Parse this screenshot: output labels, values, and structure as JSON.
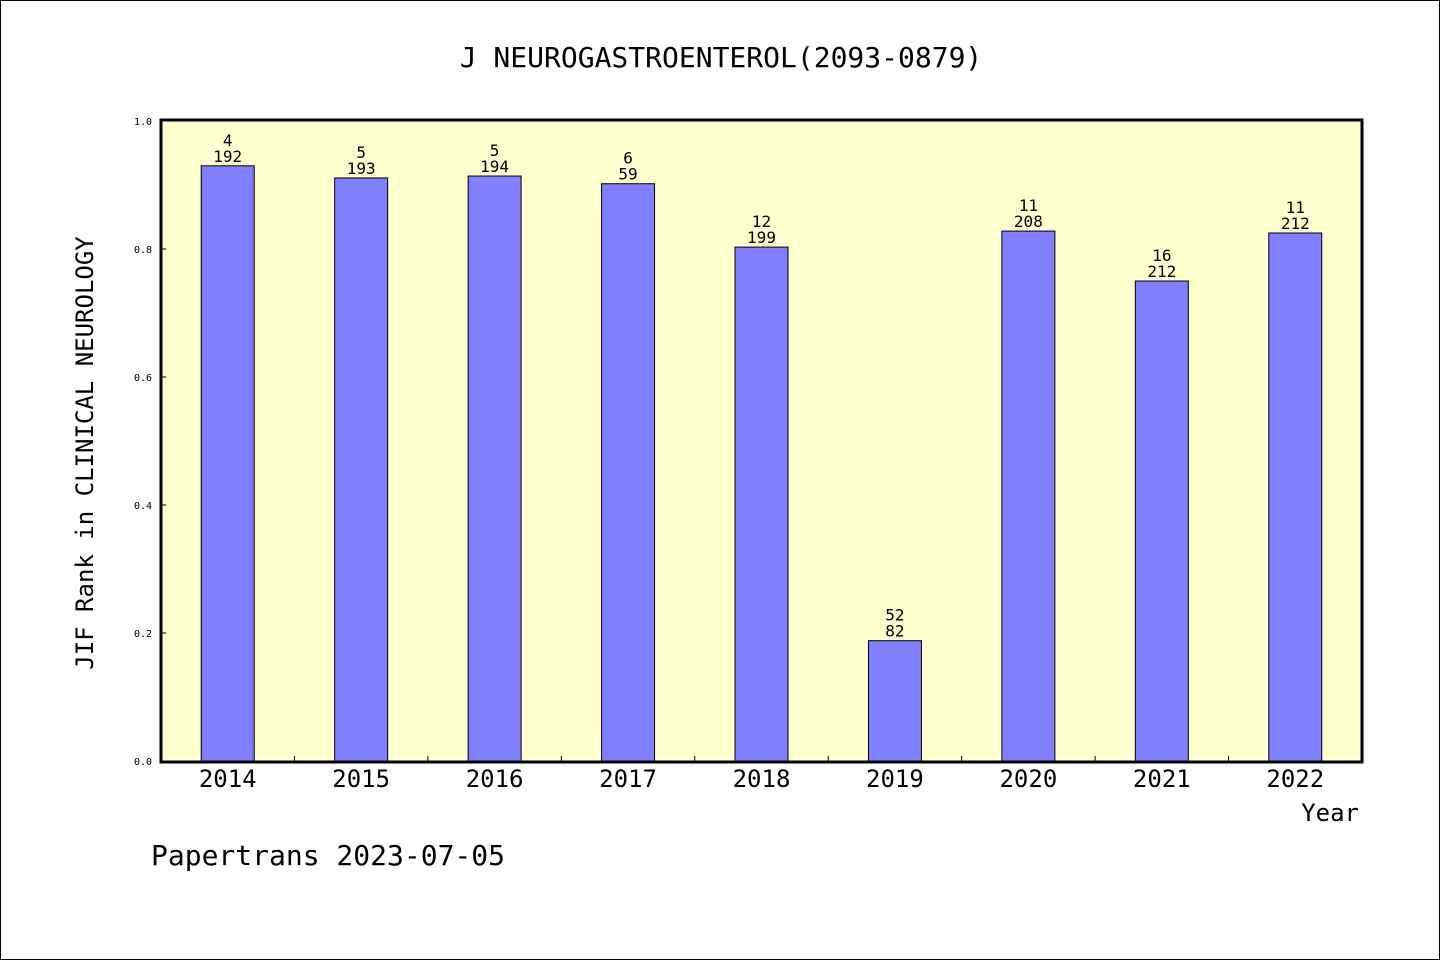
{
  "chart_data": {
    "type": "bar",
    "title": "J NEUROGASTROENTEROL(2093-0879)",
    "xlabel": "Year",
    "ylabel": "JIF Rank in CLINICAL NEUROLOGY",
    "ylim": [
      0,
      1.0
    ],
    "yticks": [
      "0.0",
      "0.2",
      "0.4",
      "0.6",
      "0.8",
      "1.0"
    ],
    "categories": [
      "2014",
      "2015",
      "2016",
      "2017",
      "2018",
      "2019",
      "2020",
      "2021",
      "2022"
    ],
    "values": [
      0.93,
      0.911,
      0.914,
      0.902,
      0.803,
      0.188,
      0.828,
      0.75,
      0.825
    ],
    "ranks": [
      "4",
      "5",
      "5",
      "6",
      "12",
      "52",
      "11",
      "16",
      "11"
    ],
    "totals": [
      "192",
      "193",
      "194",
      "59",
      "199",
      "82",
      "208",
      "212",
      "212"
    ],
    "bar_color": "#8080ff",
    "plot_bg": "#ffffd0",
    "grid": false
  },
  "footer": "Papertrans 2023-07-05"
}
